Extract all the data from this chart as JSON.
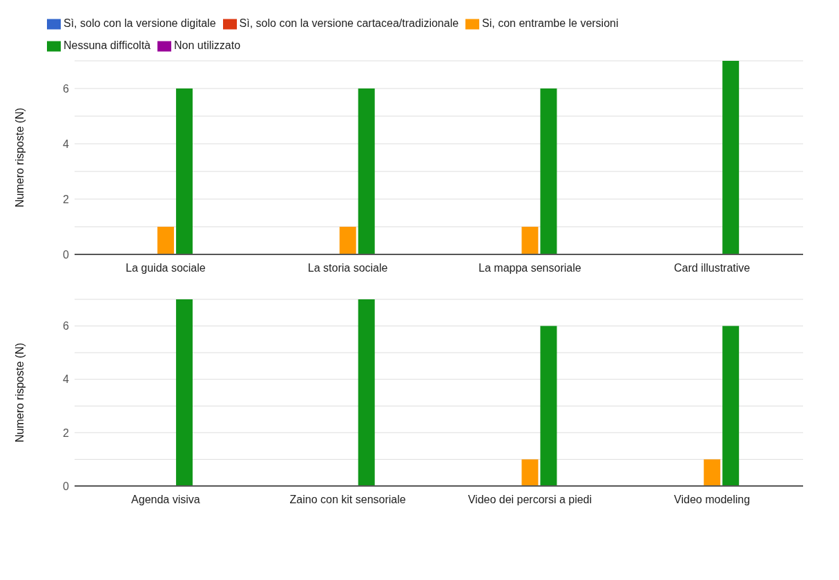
{
  "chart_data": [
    {
      "type": "bar",
      "categories": [
        "La guida sociale",
        "La storia sociale",
        "La mappa sensoriale",
        "Card illustrative"
      ],
      "ylabel": "Numero risposte (N)",
      "ylim": [
        0,
        7
      ],
      "yticks": [
        0,
        {
          "value": 1,
          "label": null
        },
        2,
        {
          "value": 3,
          "label": null
        },
        4,
        {
          "value": 5,
          "label": null
        },
        6,
        {
          "value": 7,
          "label": null
        }
      ],
      "grid": "y",
      "legend": "top left",
      "series": [
        {
          "name": "Sì, solo con la versione digitale",
          "color": "#3366cc",
          "values": [
            0,
            0,
            0,
            0
          ]
        },
        {
          "name": "Sì, solo con la versione cartacea/tradizionale",
          "color": "#dc3912",
          "values": [
            0,
            0,
            0,
            0
          ]
        },
        {
          "name": "Si, con entrambe le versioni",
          "color": "#ff9900",
          "values": [
            1,
            1,
            1,
            0
          ]
        },
        {
          "name": "Nessuna difficoltà",
          "color": "#109618",
          "values": [
            6,
            6,
            6,
            7
          ]
        },
        {
          "name": "Non utilizzato",
          "color": "#990099",
          "values": [
            0,
            0,
            0,
            0
          ]
        }
      ]
    },
    {
      "type": "bar",
      "categories": [
        "Agenda visiva",
        "Zaino con kit sensoriale",
        "Video dei percorsi a piedi",
        "Video modeling"
      ],
      "ylabel": "Numero risposte (N)",
      "ylim": [
        0,
        7
      ],
      "yticks": [
        0,
        {
          "value": 1,
          "label": null
        },
        2,
        {
          "value": 3,
          "label": null
        },
        4,
        {
          "value": 5,
          "label": null
        },
        6,
        {
          "value": 7,
          "label": null
        }
      ],
      "grid": "y",
      "series": [
        {
          "color": "#3366cc",
          "values": [
            0,
            0,
            0,
            0
          ]
        },
        {
          "color": "#dc3912",
          "values": [
            0,
            0,
            0,
            0
          ]
        },
        {
          "color": "#ff9900",
          "values": [
            0,
            0,
            1,
            1
          ]
        },
        {
          "color": "#109618",
          "values": [
            7,
            7,
            6,
            6
          ]
        },
        {
          "color": "#990099",
          "values": [
            0,
            0,
            0,
            0
          ]
        }
      ]
    }
  ]
}
